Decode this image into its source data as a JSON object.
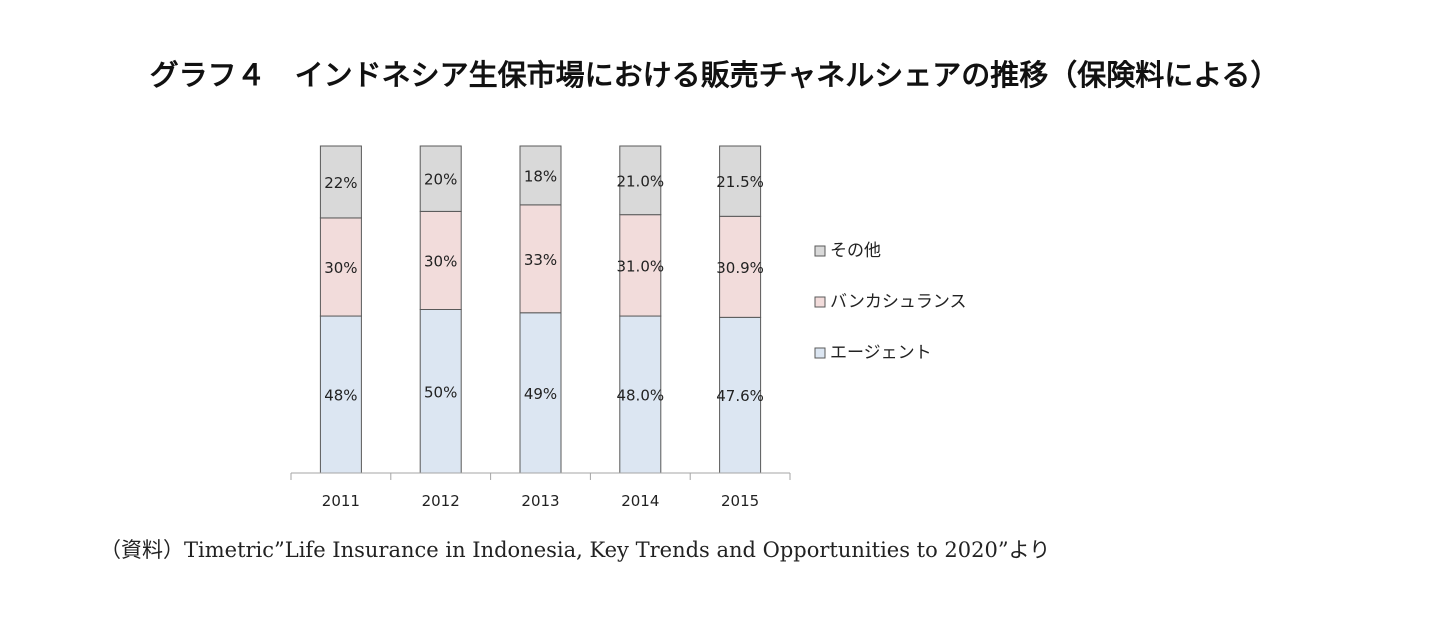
{
  "title": "グラフ４　インドネシア生保市場における販売チャネルシェアの推移（保険料による）",
  "source": "（資料）Timetric”Life Insurance in Indonesia, Key Trends and Opportunities to 2020”より",
  "colors": {
    "agent": "#dce6f2",
    "bancassurance": "#f2dcdb",
    "other": "#d9d9d9",
    "stroke": "#595959"
  },
  "chart_data": {
    "type": "bar",
    "stacked": true,
    "percent_stacked": true,
    "categories": [
      "2011",
      "2012",
      "2013",
      "2014",
      "2015"
    ],
    "series": [
      {
        "name": "エージェント",
        "values": [
          48,
          50,
          49,
          48.0,
          47.6
        ],
        "labels": [
          "48%",
          "50%",
          "49%",
          "48.0%",
          "47.6%"
        ],
        "color": "#dce6f2"
      },
      {
        "name": "バンカシュランス",
        "values": [
          30,
          30,
          33,
          31.0,
          30.9
        ],
        "labels": [
          "30%",
          "30%",
          "33%",
          "31.0%",
          "30.9%"
        ],
        "color": "#f2dcdb"
      },
      {
        "name": "その他",
        "values": [
          22,
          20,
          18,
          21.0,
          21.5
        ],
        "labels": [
          "22%",
          "20%",
          "18%",
          "21.0%",
          "21.5%"
        ],
        "color": "#d9d9d9"
      }
    ],
    "legend_position": "right",
    "legend_order": [
      "その他",
      "バンカシュランス",
      "エージェント"
    ],
    "ylim": [
      0,
      100
    ],
    "grid": false
  }
}
